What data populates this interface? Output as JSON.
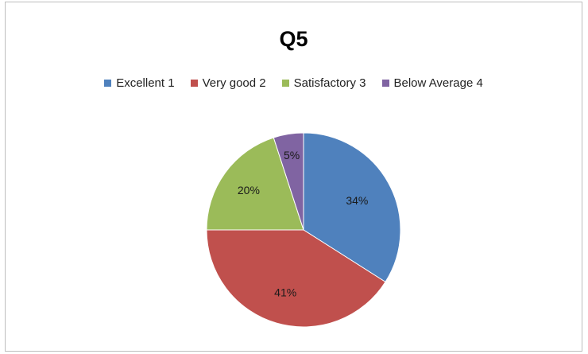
{
  "chart_data": {
    "type": "pie",
    "title": "Q5",
    "legend_position": "top",
    "categories": [
      "Excellent 1",
      "Very good 2",
      "Satisfactory 3",
      "Below Average 4"
    ],
    "values": [
      34,
      41,
      20,
      5
    ],
    "data_labels": [
      "34%",
      "41%",
      "20%",
      "5%"
    ],
    "colors": [
      "#4f81bd",
      "#c0504d",
      "#9bbb59",
      "#8064a2"
    ],
    "start": "12 o'clock, clockwise"
  }
}
